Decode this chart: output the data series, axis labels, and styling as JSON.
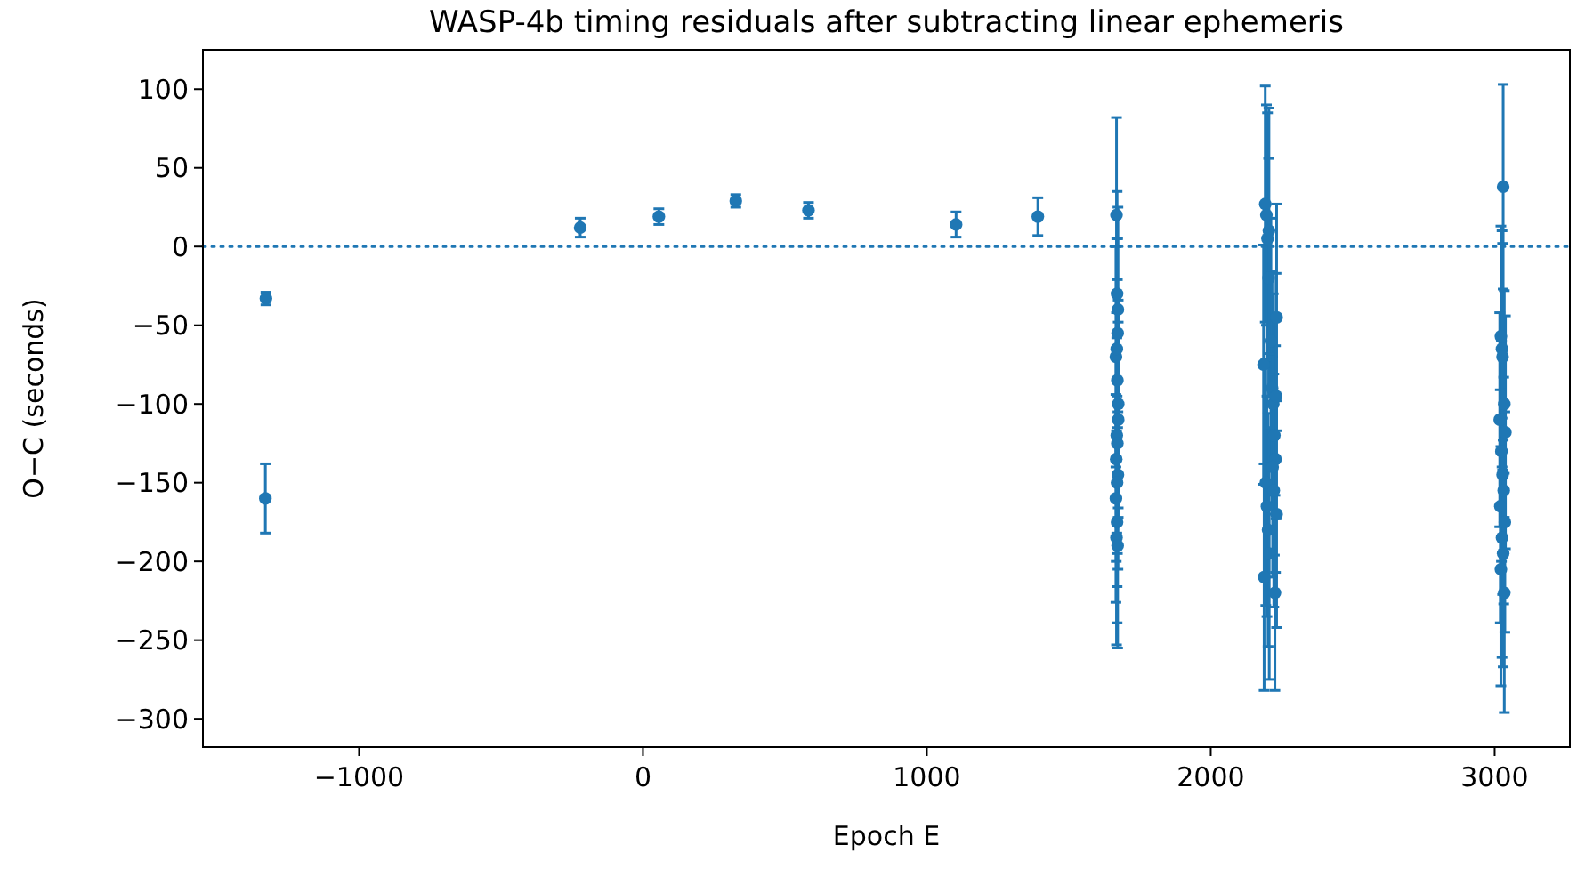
{
  "chart_data": {
    "type": "scatter",
    "title": "WASP-4b timing residuals after subtracting linear ephemeris",
    "xlabel": "Epoch E",
    "ylabel": "O−C (seconds)",
    "x": [
      -1330,
      -1328,
      -221,
      56,
      327,
      583,
      1103,
      1391,
      1668,
      1670,
      1672,
      1666,
      1674,
      1669,
      1671,
      1667,
      1673,
      1670,
      1668,
      1672,
      1669,
      1671,
      1674,
      1666,
      1670,
      1673,
      2192,
      2196,
      2200,
      2204,
      2232,
      2212,
      2216,
      2220,
      2224,
      2228,
      2194,
      2198,
      2202,
      2206,
      2188,
      2186,
      2218,
      2222,
      2226,
      2230,
      2205,
      2232,
      3030,
      3022,
      3026,
      3034,
      3018,
      3038,
      3024,
      3028,
      3032,
      3020,
      3036,
      3026,
      3030,
      3022,
      3034,
      3028
    ],
    "values": [
      -160,
      -33,
      12,
      19,
      29,
      23,
      14,
      19,
      20,
      -30,
      -55,
      -70,
      -100,
      -120,
      -125,
      -135,
      -145,
      -150,
      -185,
      -190,
      -65,
      -85,
      -110,
      -160,
      -175,
      -40,
      27,
      20,
      5,
      -20,
      -45,
      -60,
      -90,
      -100,
      -120,
      -135,
      -150,
      -165,
      -180,
      -195,
      -210,
      -75,
      -140,
      -155,
      -220,
      -95,
      10,
      -170,
      38,
      -57,
      -65,
      -100,
      -110,
      -118,
      -130,
      -145,
      -155,
      -165,
      -175,
      -185,
      -195,
      -205,
      -220,
      -70
    ],
    "errors": [
      22,
      4,
      6,
      5,
      4,
      5,
      8,
      12,
      62,
      65,
      60,
      70,
      66,
      62,
      70,
      65,
      60,
      66,
      68,
      65,
      70,
      64,
      62,
      66,
      64,
      65,
      75,
      70,
      80,
      76,
      72,
      78,
      74,
      70,
      76,
      72,
      78,
      70,
      74,
      80,
      72,
      76,
      70,
      74,
      62,
      78,
      78,
      72,
      65,
      70,
      75,
      72,
      68,
      74,
      70,
      76,
      72,
      74,
      70,
      76,
      72,
      74,
      76,
      72
    ],
    "color": "#1f77b4",
    "marker": "circle",
    "grid": false,
    "xlim": [
      -1550,
      3265
    ],
    "ylim": [
      -318,
      125
    ],
    "xticks": [
      {
        "value": -1000,
        "label": "−1000"
      },
      0,
      1000,
      2000,
      3000
    ],
    "yticks": [
      100,
      50,
      0,
      {
        "value": -50,
        "label": "−50"
      },
      {
        "value": -100,
        "label": "−100"
      },
      {
        "value": -150,
        "label": "−150"
      },
      {
        "value": -200,
        "label": "−200"
      },
      {
        "value": -250,
        "label": "−250"
      },
      {
        "value": -300,
        "label": "−300"
      }
    ],
    "ref_lines": [
      {
        "axis": "y",
        "value": 0,
        "label": null,
        "color": "#1f77b4",
        "line_style": "dotted"
      }
    ]
  }
}
